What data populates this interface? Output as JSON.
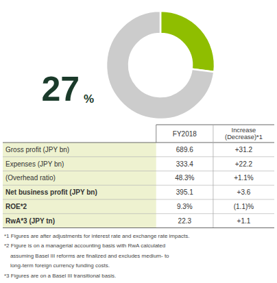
{
  "chart_data": [
    {
      "type": "pie",
      "values": [
        27,
        73
      ],
      "colors": [
        "#8fbe00",
        "#cccccc"
      ],
      "annotations": [
        "27",
        "%"
      ]
    },
    {
      "type": "table",
      "columns": [
        "FY2018",
        "Increase\n(Decrease)*1"
      ],
      "rows": [
        [
          "Gross profit (JPY bn)",
          "689.6",
          "+31.2"
        ],
        [
          "Expenses (JPY bn)",
          "333.4",
          "+22.2"
        ],
        [
          "(Overhead ratio)",
          "48.3%",
          "+1.1%"
        ],
        [
          "Net business profit (JPY bn)",
          "395.1",
          "+3.6"
        ],
        [
          "ROE*2",
          "9.3%",
          "(1.1)%"
        ],
        [
          "RwA*3 (JPY tn)",
          "22.3",
          "+1.1"
        ]
      ],
      "footnotes": [
        "*1 Figures are after adjustments for interest rate and exchange rate impacts.",
        "*2 Figure is on a managerial accounting basis with RwA calculated",
        "    assuming Basel III reforms are finalized and excludes medium- to",
        "    long-term foreign currency funding costs.",
        "*3 Figures are on a Basel III transitional basis."
      ]
    }
  ]
}
